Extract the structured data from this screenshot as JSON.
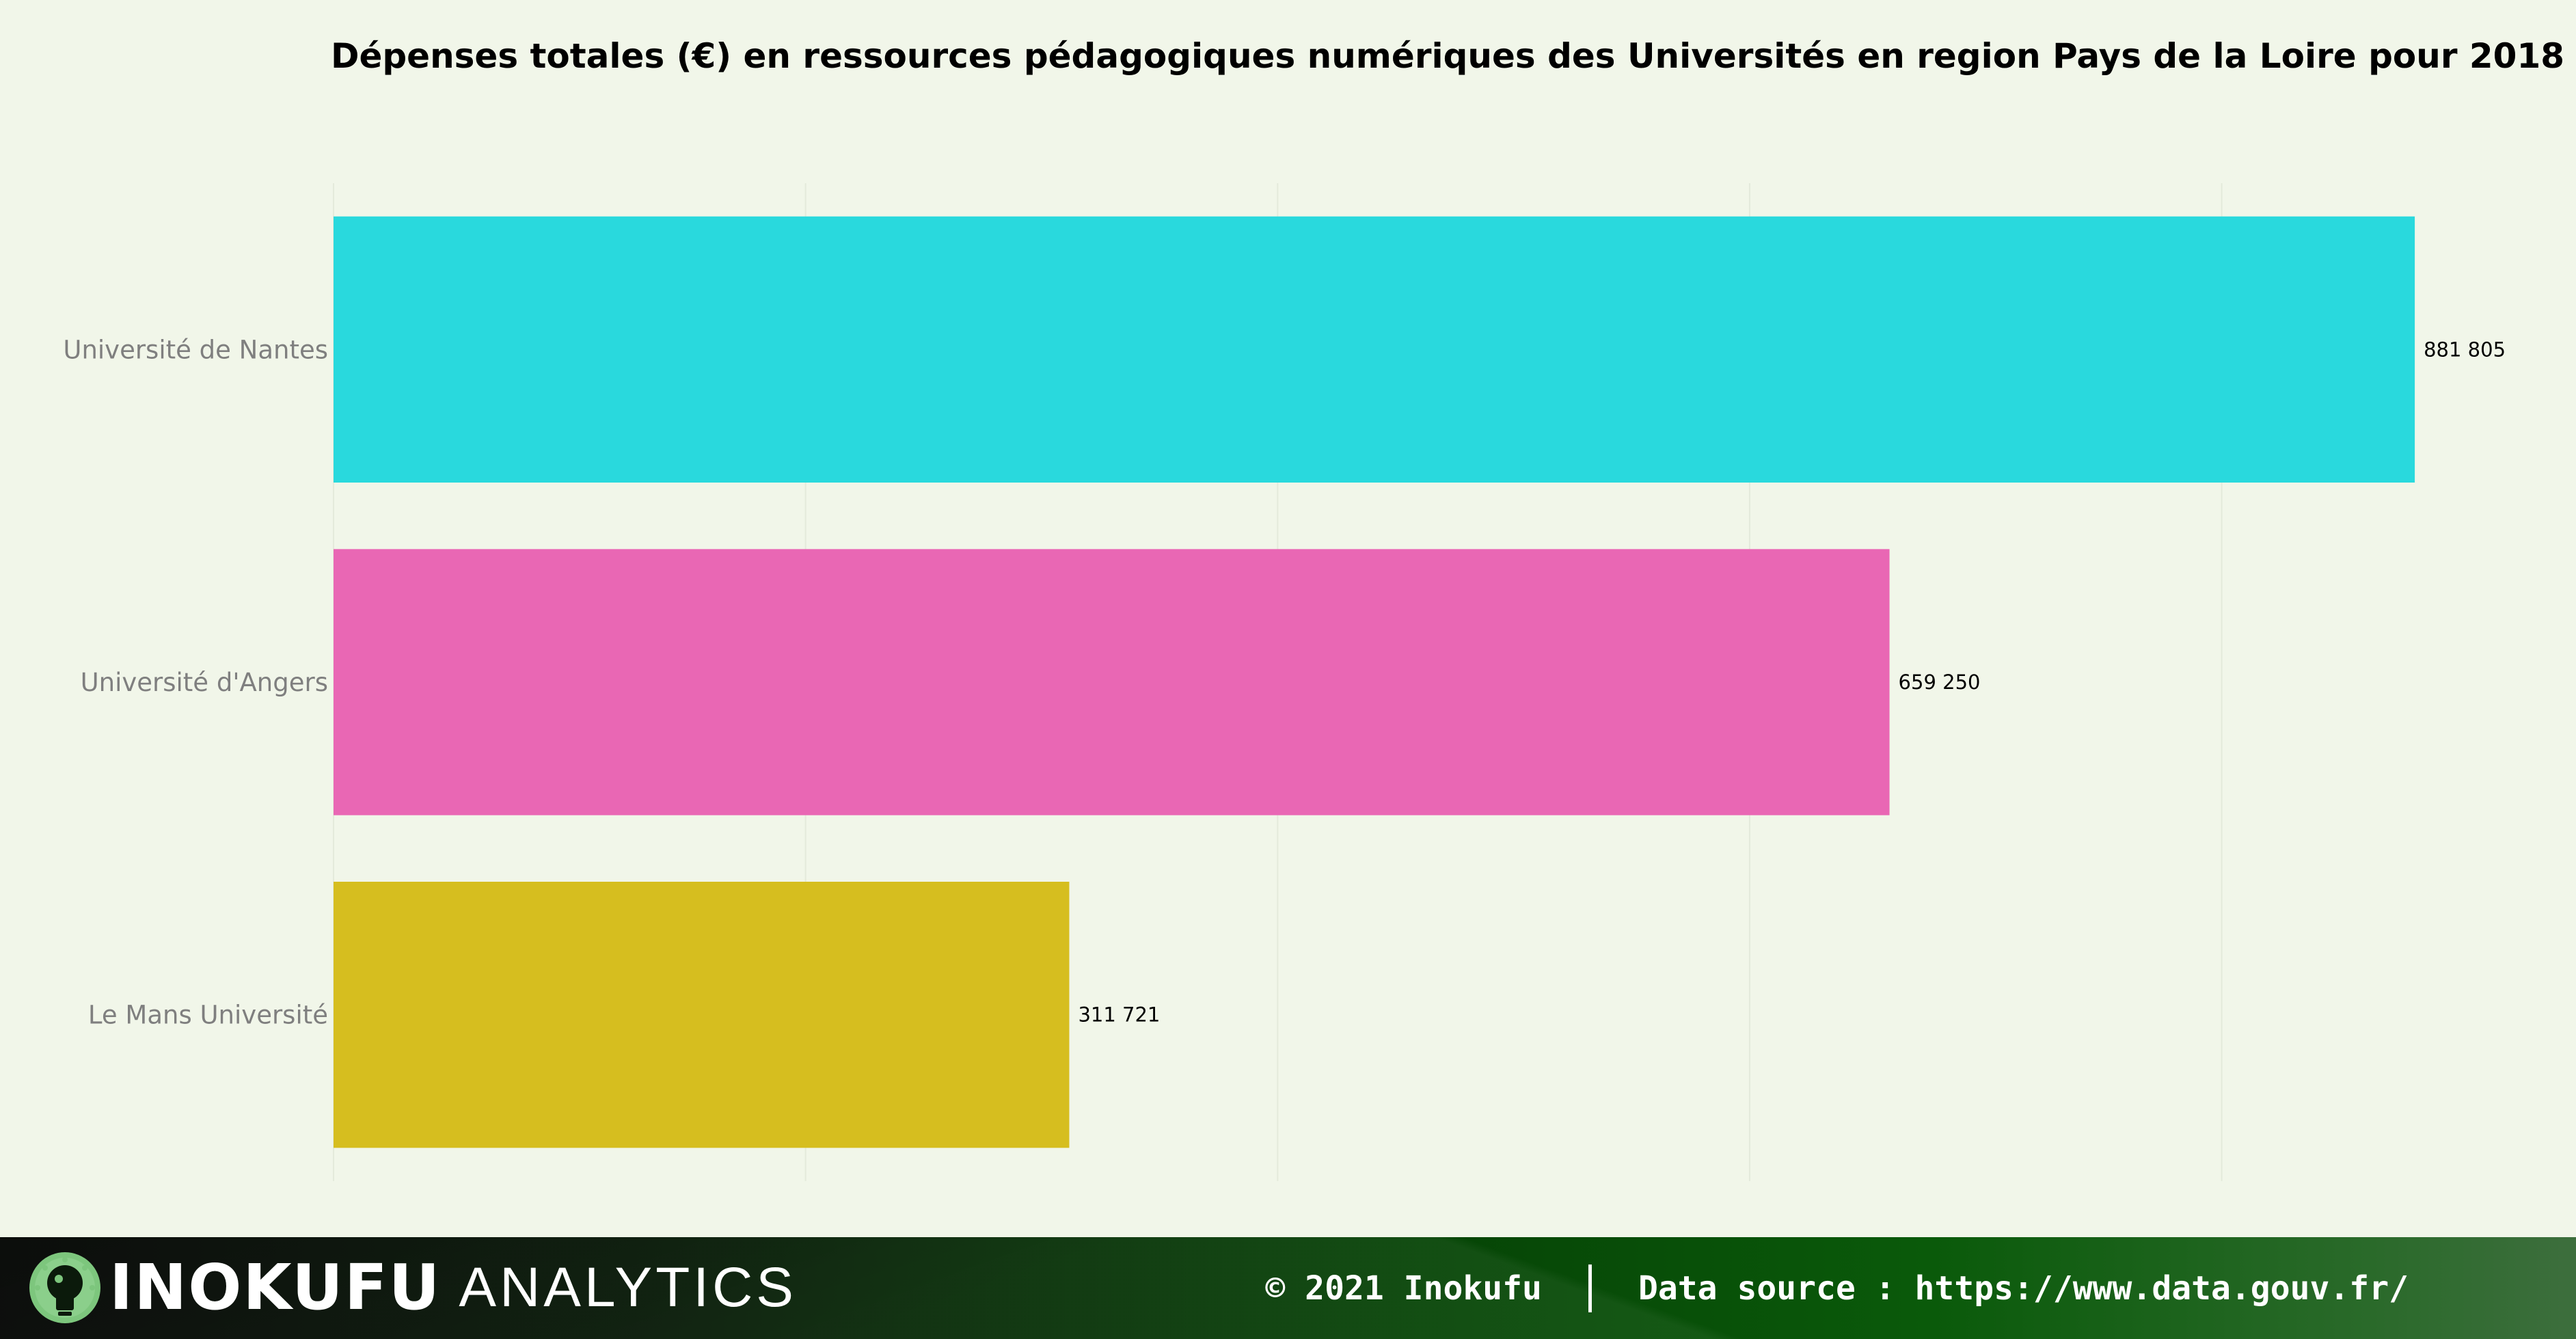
{
  "chart_data": {
    "type": "bar",
    "orientation": "horizontal",
    "title": "Dépenses totales (€) en ressources pédagogiques numériques des Universités en region Pays de la Loire pour 2018",
    "xlabel": "",
    "ylabel": "",
    "categories": [
      "Université de Nantes",
      "Université d'Angers",
      "Le Mans Université"
    ],
    "values": [
      881805,
      659250,
      311721
    ],
    "value_labels": [
      "881 805",
      "659 250",
      "311 721"
    ],
    "bar_colors": [
      "#29d9dd",
      "#e967b4",
      "#d6be1f"
    ],
    "xlim": [
      0,
      920000
    ],
    "x_gridlines": [
      0,
      200000,
      400000,
      600000,
      800000
    ],
    "x_tick_labels_shown": false,
    "grid": true,
    "legend": "none"
  },
  "footer": {
    "brand_main": "INOKUFU",
    "brand_sub": "ANALYTICS",
    "copyright": "© 2021 Inokufu",
    "source": "Data source : https://www.data.gouv.fr/"
  },
  "colors": {
    "background": "#f1f6e9",
    "title": "#000000",
    "category_label": "#7f7f7f",
    "value_label": "#000000",
    "grid": "#e4eadb",
    "logo_accent": "#7dc67d"
  }
}
